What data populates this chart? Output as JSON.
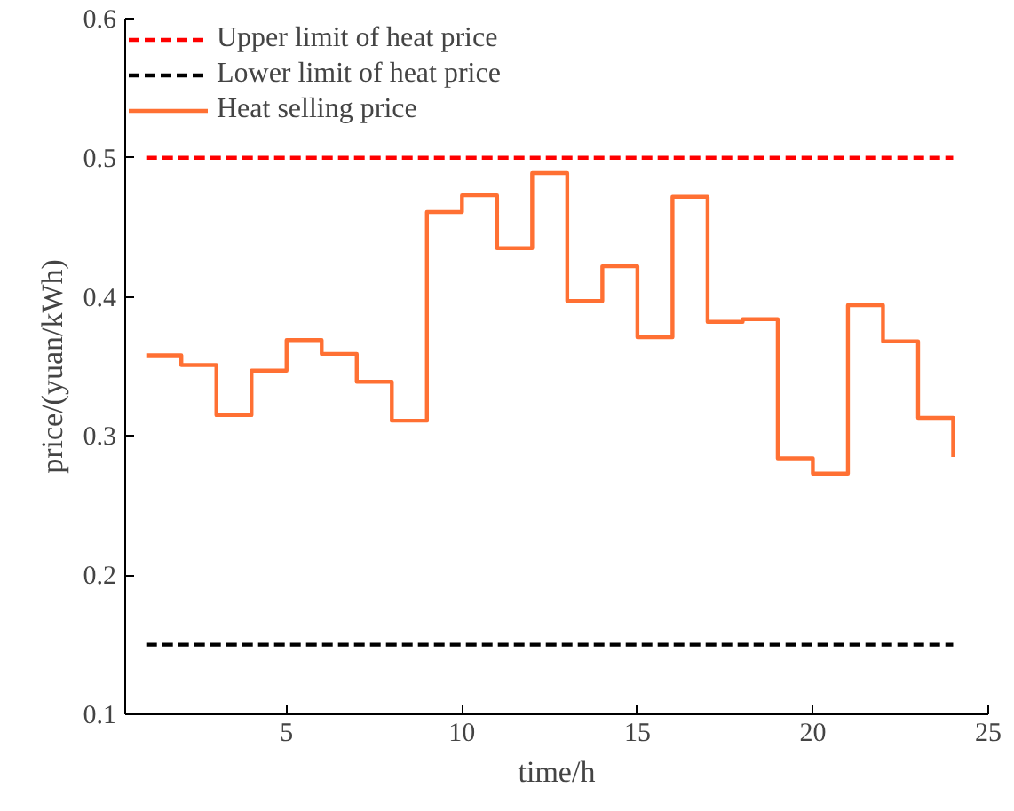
{
  "chart_data": {
    "type": "step",
    "xlabel": "time/h",
    "ylabel": "price/(yuan/kWh)",
    "x": [
      1,
      2,
      3,
      4,
      5,
      6,
      7,
      8,
      9,
      10,
      11,
      12,
      13,
      14,
      15,
      16,
      17,
      18,
      19,
      20,
      21,
      22,
      23,
      24
    ],
    "series": [
      {
        "name": "Upper limit of heat price",
        "type": "line",
        "color": "#ff0000",
        "line_style": "dashed",
        "values": [
          0.5,
          0.5,
          0.5,
          0.5,
          0.5,
          0.5,
          0.5,
          0.5,
          0.5,
          0.5,
          0.5,
          0.5,
          0.5,
          0.5,
          0.5,
          0.5,
          0.5,
          0.5,
          0.5,
          0.5,
          0.5,
          0.5,
          0.5,
          0.5
        ]
      },
      {
        "name": "Lower limit of heat price",
        "type": "line",
        "color": "#000000",
        "line_style": "dashed",
        "values": [
          0.15,
          0.15,
          0.15,
          0.15,
          0.15,
          0.15,
          0.15,
          0.15,
          0.15,
          0.15,
          0.15,
          0.15,
          0.15,
          0.15,
          0.15,
          0.15,
          0.15,
          0.15,
          0.15,
          0.15,
          0.15,
          0.15,
          0.15,
          0.15
        ]
      },
      {
        "name": "Heat selling price",
        "color": "#ff7033",
        "line_style": "solid",
        "values": [
          0.358,
          0.351,
          0.315,
          0.347,
          0.369,
          0.359,
          0.339,
          0.311,
          0.461,
          0.473,
          0.435,
          0.489,
          0.397,
          0.422,
          0.371,
          0.472,
          0.382,
          0.384,
          0.284,
          0.273,
          0.394,
          0.368,
          0.313,
          0.285
        ]
      }
    ],
    "xlim": [
      0.4,
      25
    ],
    "xticks": [
      5,
      10,
      15,
      20,
      25
    ],
    "ylim": [
      0.1,
      0.6
    ],
    "yticks": [
      0.1,
      0.2,
      0.3,
      0.4,
      0.5,
      0.6
    ],
    "grid": false,
    "legend": "top left"
  }
}
